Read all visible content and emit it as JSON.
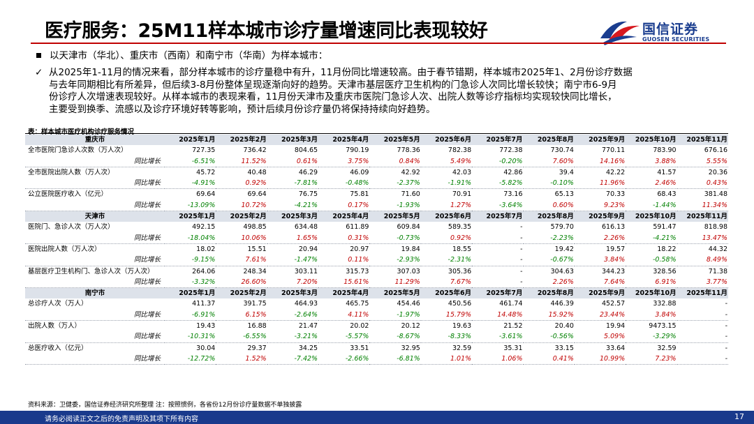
{
  "header": {
    "title": "医疗服务：25M11样本城市诊疗量增速同比表现较好",
    "logo_name": "国信证券",
    "logo_en": "GUOSEN SECURITIES"
  },
  "bullets": {
    "first": "以天津市（华北）、重庆市（西南）和南宁市（华南）为样本城市：",
    "second_lines": [
      "从2025年1-11月的情况来看，部分样本城市的诊疗量稳中有升，11月份同比增速较高。由于春节错期，样本城市2025年1、2月份诊疗数据",
      "与去年同期相比有所差异，但后续3-8月份整体呈现逐渐向好的趋势。天津市基层医疗卫生机构的门急诊人次同比增长较快；南宁市6-9月",
      "份诊疗人次增速表现较好。从样本城市的表现来看，11月份天津市及重庆市医院门急诊人次、出院人数等诊疗指标均实现较快同比增长，",
      "主要受到换季、流感以及诊疗环境好转等影响，预计后续月份诊疗量仍将保持持续向好趋势。"
    ]
  },
  "table": {
    "caption": "表：样本城市医疗机构诊疗服务情况",
    "yoy_label": "同比增长",
    "months": [
      "2025年1月",
      "2025年2月",
      "2025年3月",
      "2025年4月",
      "2025年5月",
      "2025年6月",
      "2025年7月",
      "2025年8月",
      "2025年9月",
      "2025年10月",
      "2025年11月"
    ],
    "cities": [
      {
        "name": "重庆市",
        "metrics": [
          {
            "label": "全市医院门急诊人次数（万人次）",
            "values": [
              "727.35",
              "736.42",
              "804.65",
              "790.19",
              "778.36",
              "782.38",
              "772.38",
              "730.74",
              "770.11",
              "783.90",
              "676.16"
            ],
            "yoy": [
              "-6.51%",
              "11.52%",
              "0.61%",
              "3.75%",
              "0.84%",
              "5.49%",
              "-0.20%",
              "7.60%",
              "14.16%",
              "3.88%",
              "5.55%"
            ]
          },
          {
            "label": "全市医院出院人数（万人次）",
            "values": [
              "45.72",
              "40.48",
              "46.29",
              "46.09",
              "42.92",
              "42.03",
              "42.86",
              "39.4",
              "42.22",
              "41.57",
              "20.36"
            ],
            "yoy": [
              "-4.91%",
              "0.92%",
              "-7.81%",
              "-0.48%",
              "-2.37%",
              "-1.91%",
              "-5.82%",
              "-0.10%",
              "11.96%",
              "2.46%",
              "0.43%"
            ]
          },
          {
            "label": "公立医院医疗收入（亿元）",
            "values": [
              "69.64",
              "69.64",
              "76.75",
              "75.81",
              "71.60",
              "70.91",
              "73.16",
              "65.13",
              "70.33",
              "68.43",
              "381.48"
            ],
            "yoy": [
              "-13.09%",
              "10.72%",
              "-4.21%",
              "0.17%",
              "-1.93%",
              "1.27%",
              "-3.64%",
              "0.60%",
              "9.23%",
              "-1.44%",
              "11.34%"
            ]
          }
        ]
      },
      {
        "name": "天津市",
        "metrics": [
          {
            "label": "医院门、急诊人次（万人次）",
            "values": [
              "492.15",
              "498.85",
              "634.48",
              "611.89",
              "609.84",
              "589.35",
              "-",
              "579.70",
              "616.13",
              "591.47",
              "818.98"
            ],
            "yoy": [
              "-18.04%",
              "10.06%",
              "1.65%",
              "0.31%",
              "-0.73%",
              "0.92%",
              "-",
              "-2.23%",
              "2.26%",
              "-4.21%",
              "13.47%"
            ]
          },
          {
            "label": "医院出院人数（万人次）",
            "values": [
              "18.02",
              "15.51",
              "20.94",
              "20.97",
              "19.84",
              "18.55",
              "-",
              "19.42",
              "19.57",
              "18.22",
              "44.32"
            ],
            "yoy": [
              "-9.15%",
              "7.61%",
              "-1.47%",
              "0.11%",
              "-2.93%",
              "-2.31%",
              "-",
              "-0.67%",
              "3.84%",
              "-0.58%",
              "8.49%"
            ]
          },
          {
            "label": "基层医疗卫生机构门、急诊人次（万人次）",
            "values": [
              "264.06",
              "248.34",
              "303.11",
              "315.73",
              "307.03",
              "305.36",
              "-",
              "304.63",
              "344.23",
              "328.56",
              "71.38"
            ],
            "yoy": [
              "-3.32%",
              "26.60%",
              "7.20%",
              "15.61%",
              "11.29%",
              "7.67%",
              "-",
              "2.26%",
              "7.64%",
              "6.91%",
              "3.77%"
            ]
          }
        ]
      },
      {
        "name": "南宁市",
        "metrics": [
          {
            "label": "总诊疗人次（万人）",
            "values": [
              "411.37",
              "391.75",
              "464.93",
              "465.75",
              "454.46",
              "450.56",
              "461.74",
              "446.39",
              "452.57",
              "332.88",
              "-"
            ],
            "yoy": [
              "-6.91%",
              "6.15%",
              "-2.64%",
              "4.11%",
              "-1.97%",
              "15.79%",
              "14.48%",
              "15.92%",
              "23.44%",
              "3.84%",
              "-"
            ]
          },
          {
            "label": "出院人数（万人）",
            "values": [
              "19.43",
              "16.88",
              "21.47",
              "20.02",
              "20.12",
              "19.63",
              "21.52",
              "20.40",
              "19.94",
              "9473.15",
              "-"
            ],
            "yoy": [
              "-10.31%",
              "-6.55%",
              "-3.21%",
              "-5.57%",
              "-8.67%",
              "-8.33%",
              "-3.61%",
              "-0.56%",
              "5.09%",
              "-3.29%",
              "-"
            ]
          },
          {
            "label": "总医疗收入（亿元）",
            "values": [
              "30.04",
              "29.37",
              "34.25",
              "33.51",
              "32.95",
              "32.59",
              "35.31",
              "33.15",
              "33.64",
              "32.59",
              "-"
            ],
            "yoy": [
              "-12.72%",
              "1.52%",
              "-7.42%",
              "-2.66%",
              "-6.81%",
              "1.01%",
              "1.06%",
              "0.41%",
              "10.99%",
              "7.23%",
              "-"
            ]
          }
        ]
      }
    ]
  },
  "source": "资料来源：卫健委，国信证券经济研究所整理    注：按照惯例，各省份12月份诊疗量数据不单独披露",
  "footer": {
    "disclaimer": "请务必阅读正文之后的免责声明及其项下所有内容",
    "page": "17"
  },
  "colors": {
    "positive": "#c00000",
    "negative": "#008000",
    "brand": "#1a3a8c",
    "accent_red": "#c00000"
  },
  "icons": {
    "bullet1": "square-bullet-icon",
    "bullet2": "checkmark-icon",
    "logo": "guosen-logo-icon"
  }
}
